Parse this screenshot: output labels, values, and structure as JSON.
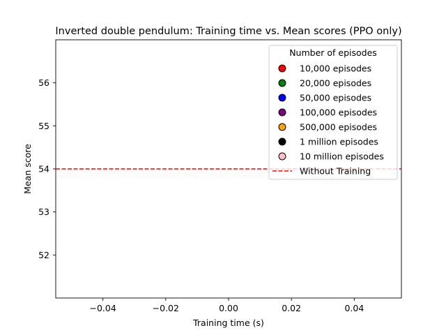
{
  "chart_data": {
    "type": "scatter",
    "title": "Inverted double pendulum: Training time vs. Mean scores (PPO only)",
    "xlabel": "Training time (s)",
    "ylabel": "Mean score",
    "xlim": [
      -0.055,
      0.055
    ],
    "ylim": [
      51.0,
      57.0
    ],
    "xticks": [
      -0.04,
      -0.02,
      0.0,
      0.02,
      0.04
    ],
    "xtick_labels": [
      "−0.04",
      "−0.02",
      "0.00",
      "0.02",
      "0.04"
    ],
    "yticks": [
      52,
      53,
      54,
      55,
      56
    ],
    "ytick_labels": [
      "52",
      "53",
      "54",
      "55",
      "56"
    ],
    "grid": false,
    "legend": {
      "title": "Number of episodes",
      "placement": "top-right",
      "entries": [
        {
          "label": "10,000 episodes",
          "marker": "circle",
          "color": "#ff0000"
        },
        {
          "label": "20,000 episodes",
          "marker": "circle",
          "color": "#008000"
        },
        {
          "label": "50,000 episodes",
          "marker": "circle",
          "color": "#0000ff"
        },
        {
          "label": "100,000 episodes",
          "marker": "circle",
          "color": "#800080"
        },
        {
          "label": "500,000 episodes",
          "marker": "circle",
          "color": "#ffa500"
        },
        {
          "label": "1 million episodes",
          "marker": "circle",
          "color": "#000000"
        },
        {
          "label": "10 million episodes",
          "marker": "circle",
          "color": "#ffc0cb"
        },
        {
          "label": "Without Training",
          "marker": "dashed-line",
          "color": "#ff0000"
        }
      ]
    },
    "series": [
      {
        "name": "10,000 episodes",
        "x": [],
        "y": []
      },
      {
        "name": "20,000 episodes",
        "x": [],
        "y": []
      },
      {
        "name": "50,000 episodes",
        "x": [],
        "y": []
      },
      {
        "name": "100,000 episodes",
        "x": [],
        "y": []
      },
      {
        "name": "500,000 episodes",
        "x": [],
        "y": []
      },
      {
        "name": "1 million episodes",
        "x": [],
        "y": []
      },
      {
        "name": "10 million episodes",
        "x": [],
        "y": []
      }
    ],
    "reference_line": {
      "name": "Without Training",
      "y": 54,
      "style": "dashed",
      "color": "#ff0000"
    }
  }
}
